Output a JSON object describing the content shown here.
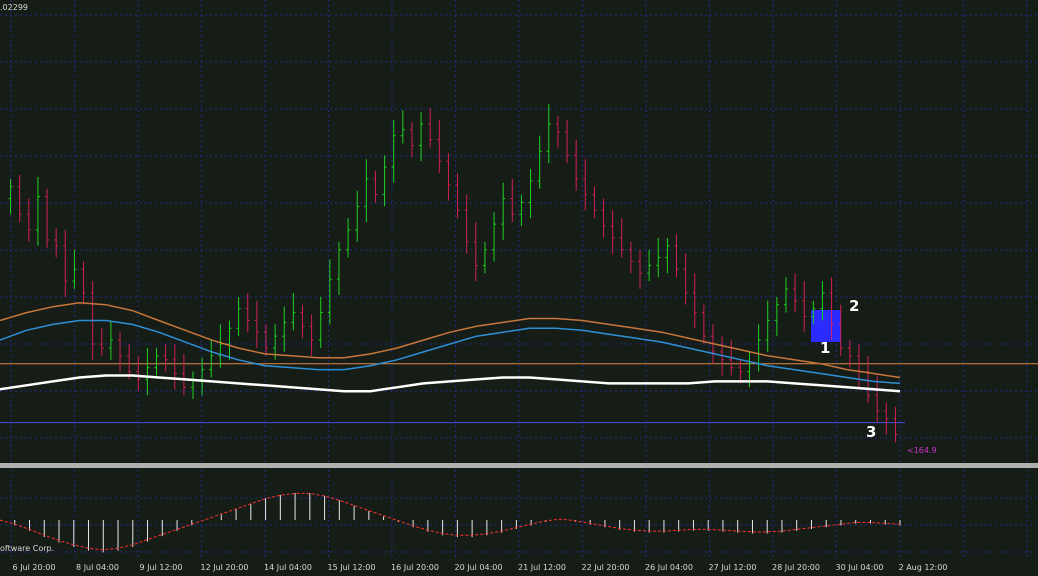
{
  "top_price_label": ".02299",
  "copyright_text": "oftware Corp.",
  "price_marker_label": "<164.9",
  "annotations": [
    "1",
    "2",
    "3"
  ],
  "colors": {
    "background": "#151d16",
    "grid": "#1e2a8c",
    "bull": "#1fd21f",
    "bear": "#d21f55",
    "ma_orange": "#c8763a",
    "ma_blue": "#2f8fd6",
    "ma_white": "#ffffff",
    "horizontal_line": "#e0884a",
    "marker_line": "#4a4ae0",
    "separator": "#b0b0b0",
    "highlight_box": "#2b2bff",
    "signal_line": "#ff3030",
    "histogram": "#e8e8e8",
    "price_marker": "#cc33cc"
  },
  "chart_data": {
    "type": "candlestick",
    "title": "",
    "x_tick_labels": [
      "6 Jul 20:00",
      "8 Jul 04:00",
      "9 Jul 12:00",
      "12 Jul 20:00",
      "14 Jul 04:00",
      "15 Jul 12:00",
      "16 Jul 20:00",
      "20 Jul 04:00",
      "21 Jul 12:00",
      "22 Jul 20:00",
      "26 Jul 04:00",
      "27 Jul 12:00",
      "28 Jul 20:00",
      "30 Jul 04:00",
      "2 Aug 12:00"
    ],
    "close_series": [
      190,
      176,
      168,
      185,
      163,
      160,
      142,
      148,
      136,
      110,
      108,
      112,
      104,
      96,
      92,
      98,
      104,
      102,
      95,
      88,
      92,
      97,
      104,
      110,
      118,
      128,
      122,
      116,
      108,
      114,
      121,
      126,
      119,
      112,
      126,
      143,
      158,
      168,
      180,
      194,
      186,
      200,
      216,
      219,
      211,
      222,
      214,
      203,
      191,
      178,
      162,
      150,
      158,
      171,
      184,
      176,
      182,
      193,
      208,
      222,
      218,
      206,
      194,
      186,
      178,
      170,
      164,
      158,
      152,
      146,
      150,
      154,
      160,
      148,
      136,
      126,
      114,
      106,
      102,
      98,
      96,
      100,
      112,
      122,
      130,
      138,
      132,
      124,
      128,
      136,
      120,
      108,
      104,
      96,
      84,
      76,
      72,
      64
    ],
    "ma_orange": [
      122,
      126,
      129,
      131,
      130,
      127,
      122,
      117,
      112,
      108,
      105,
      104,
      103,
      103,
      105,
      108,
      112,
      116,
      119,
      121,
      123,
      123,
      122,
      120,
      118,
      116,
      113,
      110,
      107,
      104,
      102,
      100,
      97,
      95,
      93
    ],
    "ma_blue": [
      112,
      117,
      120,
      122,
      122,
      120,
      116,
      111,
      106,
      102,
      99,
      98,
      97,
      97,
      99,
      102,
      106,
      110,
      114,
      116,
      118,
      118,
      117,
      115,
      113,
      111,
      108,
      105,
      102,
      99,
      97,
      95,
      93,
      91,
      90
    ],
    "ma_white": [
      87,
      89,
      91,
      93,
      94,
      94,
      93,
      92,
      91,
      90,
      89,
      88,
      87,
      86,
      86,
      88,
      90,
      91,
      92,
      93,
      93,
      92,
      91,
      90,
      90,
      90,
      90,
      91,
      91,
      91,
      90,
      89,
      88,
      87,
      86
    ],
    "oscillator": [
      -1,
      -6,
      -12,
      -19,
      -25,
      -30,
      -34,
      -36,
      -34,
      -30,
      -24,
      -18,
      -12,
      -6,
      0,
      6,
      12,
      18,
      24,
      28,
      30,
      30,
      27,
      22,
      16,
      10,
      4,
      -2,
      -8,
      -13,
      -17,
      -19,
      -19,
      -17,
      -14,
      -10,
      -6,
      -2,
      0,
      -2,
      -5,
      -8,
      -11,
      -13,
      -14,
      -14,
      -13,
      -12,
      -12,
      -13,
      -14,
      -15,
      -15,
      -14,
      -12,
      -10,
      -8,
      -6,
      -4,
      -4,
      -5,
      -6
    ],
    "horizontal_level": 100,
    "marker_level": 70,
    "ylim": [
      50,
      285
    ]
  }
}
